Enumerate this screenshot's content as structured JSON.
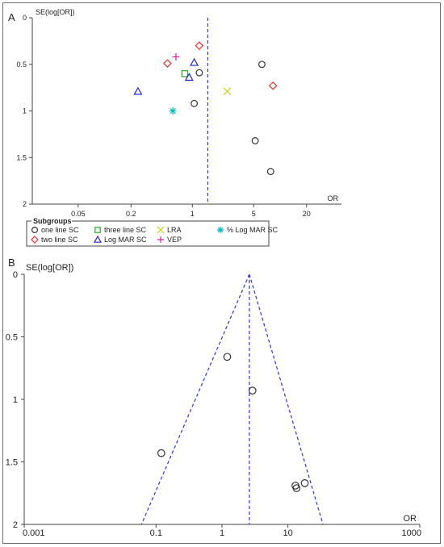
{
  "chart_data": [
    {
      "panel": "A",
      "type": "scatter",
      "x_scale": "log",
      "xlabel": "OR",
      "ylabel": "SE(log[OR])",
      "xlim": [
        0.015,
        50
      ],
      "ylim": [
        0,
        2
      ],
      "y_inverted": true,
      "x_ticks": [
        0.05,
        0.2,
        1,
        5,
        20
      ],
      "x_tick_labels": [
        "0.05",
        "0.2",
        "1",
        "5",
        "20"
      ],
      "y_ticks": [
        0,
        0.5,
        1,
        1.5,
        2
      ],
      "y_tick_labels": [
        "0",
        "0.5",
        "1",
        "1.5",
        "2"
      ],
      "vline_x": 1.5,
      "legend_title": "Subgroups",
      "legend_placement": "bottom",
      "series": [
        {
          "name": "one line SC",
          "marker": "circle",
          "color": "#333333",
          "points": [
            [
              6.2,
              0.5
            ],
            [
              1.2,
              0.59
            ],
            [
              1.05,
              0.92
            ],
            [
              5.2,
              1.32
            ],
            [
              7.8,
              1.65
            ]
          ]
        },
        {
          "name": "two line SC",
          "marker": "diamond",
          "color": "#e53030",
          "points": [
            [
              1.2,
              0.3
            ],
            [
              0.52,
              0.49
            ],
            [
              8.3,
              0.73
            ]
          ]
        },
        {
          "name": "three line SC",
          "marker": "square",
          "color": "#22aa22",
          "points": [
            [
              0.82,
              0.6
            ]
          ]
        },
        {
          "name": "Log MAR SC",
          "marker": "triangle",
          "color": "#2222dd",
          "points": [
            [
              1.05,
              0.48
            ],
            [
              0.92,
              0.64
            ],
            [
              0.24,
              0.79
            ]
          ]
        },
        {
          "name": "LRA",
          "marker": "x",
          "color": "#cccc00",
          "points": [
            [
              2.5,
              0.79
            ]
          ]
        },
        {
          "name": "VEP",
          "marker": "plus",
          "color": "#dd2299",
          "points": [
            [
              0.65,
              0.42
            ]
          ]
        },
        {
          "name": "% Log MAR SC",
          "marker": "asterisk",
          "color": "#00bbbb",
          "points": [
            [
              0.6,
              1.0
            ]
          ]
        }
      ]
    },
    {
      "panel": "B",
      "type": "scatter",
      "x_scale": "log",
      "xlabel": "OR",
      "ylabel": "SE(log[OR])",
      "xlim": [
        0.001,
        1000
      ],
      "ylim": [
        0,
        2
      ],
      "y_inverted": true,
      "x_ticks": [
        0.001,
        0.1,
        1,
        10,
        1000
      ],
      "x_tick_labels": [
        "0.001",
        "0.1",
        "1",
        "10",
        "1000"
      ],
      "y_ticks": [
        0,
        0.5,
        1,
        1.5,
        2
      ],
      "y_tick_labels": [
        "0",
        "0.5",
        "1",
        "1.5",
        "2"
      ],
      "vline_x": 2.6,
      "funnel": {
        "apex_x": 2.6,
        "apex_se": 0,
        "base_se": 2,
        "left_base_x": 0.06,
        "right_base_x": 34
      },
      "series": [
        {
          "name": "",
          "marker": "circle",
          "color": "#333333",
          "points": [
            [
              1.2,
              0.66
            ],
            [
              2.9,
              0.93
            ],
            [
              0.12,
              1.43
            ],
            [
              13,
              1.69
            ],
            [
              13.5,
              1.71
            ],
            [
              18,
              1.67
            ]
          ]
        }
      ]
    }
  ]
}
